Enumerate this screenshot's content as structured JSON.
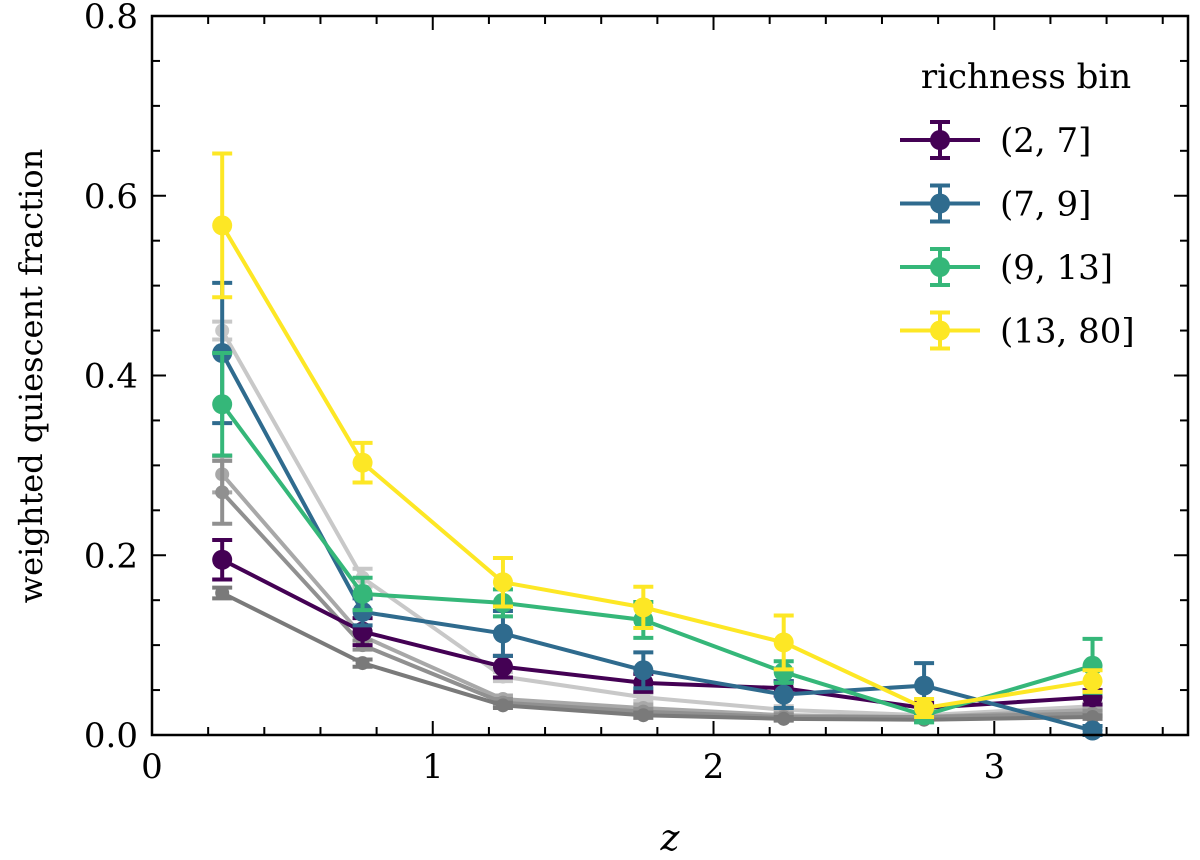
{
  "chart_data": {
    "type": "line",
    "xlabel": "z",
    "ylabel": "weighted quiescent fraction",
    "xlim": [
      0,
      3.69
    ],
    "ylim": [
      0,
      0.8
    ],
    "xticks": [
      "0",
      "1",
      "2",
      "3"
    ],
    "yticks": [
      "0.0",
      "0.2",
      "0.4",
      "0.6",
      "0.8"
    ],
    "grid": false,
    "legend": {
      "title": "richness bin",
      "placement": "top-right"
    },
    "x": [
      0.25,
      0.75,
      1.25,
      1.75,
      2.25,
      2.75,
      3.35
    ],
    "background_series": [
      {
        "color": "#c8c8c8",
        "values": [
          0.45,
          0.175,
          0.065,
          0.042,
          0.028,
          0.022,
          0.032
        ],
        "errors": [
          0.01,
          0.01,
          0.005,
          0.004,
          0.004,
          0.004,
          0.004
        ]
      },
      {
        "color": "#a8a8a8",
        "values": [
          0.29,
          0.11,
          0.04,
          0.03,
          0.022,
          0.02,
          0.028
        ],
        "errors": [
          0.02,
          0.005,
          0.004,
          0.004,
          0.003,
          0.003,
          0.003
        ]
      },
      {
        "color": "#909090",
        "values": [
          0.27,
          0.1,
          0.036,
          0.026,
          0.02,
          0.02,
          0.024
        ],
        "errors": [
          0.035,
          0.005,
          0.004,
          0.003,
          0.003,
          0.003,
          0.003
        ]
      },
      {
        "color": "#7a7a7a",
        "values": [
          0.158,
          0.08,
          0.033,
          0.022,
          0.018,
          0.017,
          0.02
        ],
        "errors": [
          0.006,
          0.004,
          0.003,
          0.003,
          0.002,
          0.002,
          0.002
        ]
      }
    ],
    "series": [
      {
        "name": "(2, 7]",
        "color": "#440154",
        "values": [
          0.195,
          0.115,
          0.076,
          0.058,
          0.052,
          0.03,
          0.042
        ],
        "errors": [
          0.022,
          0.015,
          0.012,
          0.01,
          0.008,
          0.006,
          0.008
        ]
      },
      {
        "name": "(7, 9]",
        "color": "#2f6b8e",
        "values": [
          0.425,
          0.137,
          0.113,
          0.072,
          0.045,
          0.055,
          0.005
        ],
        "errors": [
          0.078,
          0.015,
          0.025,
          0.02,
          0.015,
          0.025,
          0.005
        ]
      },
      {
        "name": "(9, 13]",
        "color": "#35b779",
        "values": [
          0.368,
          0.157,
          0.147,
          0.128,
          0.07,
          0.022,
          0.077
        ],
        "errors": [
          0.057,
          0.018,
          0.015,
          0.02,
          0.012,
          0.008,
          0.03
        ]
      },
      {
        "name": "(13, 80]",
        "color": "#fde725",
        "values": [
          0.567,
          0.303,
          0.17,
          0.142,
          0.103,
          0.03,
          0.06
        ],
        "errors": [
          0.08,
          0.022,
          0.027,
          0.023,
          0.03,
          0.01,
          0.012
        ]
      }
    ]
  }
}
